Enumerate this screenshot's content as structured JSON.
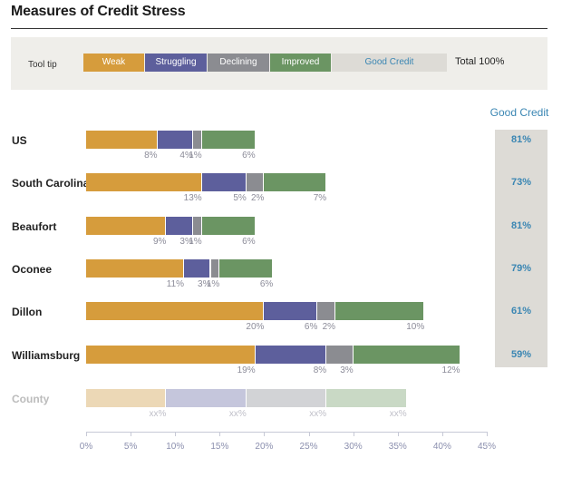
{
  "title": "Measures of Credit Stress",
  "legend": {
    "tooltip_label": "Tool tip",
    "items": [
      {
        "label": "Weak",
        "color": "#d69c3c"
      },
      {
        "label": "Struggling",
        "color": "#5d5f9c"
      },
      {
        "label": "Declining",
        "color": "#8b8c91"
      },
      {
        "label": "Improved",
        "color": "#6b9563"
      },
      {
        "label": "Good Credit",
        "color": "#dddbd6"
      }
    ],
    "total_label": "Total 100%"
  },
  "chart_data": {
    "type": "bar",
    "orientation": "horizontal",
    "stacked": true,
    "title": "Measures of Credit Stress",
    "series_names": [
      "Weak",
      "Struggling",
      "Declining",
      "Improved"
    ],
    "series_colors": [
      "#d69c3c",
      "#5d5f9c",
      "#8b8c91",
      "#6b9563"
    ],
    "good_credit_header": "Good Credit",
    "rows": [
      {
        "label": "US",
        "values": [
          8,
          4,
          1,
          6
        ],
        "labels": [
          "8%",
          "4%",
          "1%",
          "6%"
        ],
        "good_credit": "81%"
      },
      {
        "label": "South Carolina",
        "values": [
          13,
          5,
          2,
          7
        ],
        "labels": [
          "13%",
          "5%",
          "2%",
          "7%"
        ],
        "good_credit": "73%"
      },
      {
        "label": "Beaufort",
        "values": [
          9,
          3,
          1,
          6
        ],
        "labels": [
          "9%",
          "3%",
          "1%",
          "6%"
        ],
        "good_credit": "81%"
      },
      {
        "label": "Oconee",
        "values": [
          11,
          3,
          1,
          6
        ],
        "labels": [
          "11%",
          "3%",
          "1%",
          "6%"
        ],
        "good_credit": "79%"
      },
      {
        "label": "Dillon",
        "values": [
          20,
          6,
          2,
          10
        ],
        "labels": [
          "20%",
          "6%",
          "2%",
          "10%"
        ],
        "good_credit": "61%"
      },
      {
        "label": "Williamsburg",
        "values": [
          19,
          8,
          3,
          12
        ],
        "labels": [
          "19%",
          "8%",
          "3%",
          "12%"
        ],
        "good_credit": "59%"
      },
      {
        "label": "County",
        "values": [
          9,
          9,
          9,
          9
        ],
        "labels": [
          "xx%",
          "xx%",
          "xx%",
          "xx%"
        ],
        "good_credit": null,
        "placeholder": true
      }
    ],
    "x_ticks": [
      "0%",
      "5%",
      "10%",
      "15%",
      "20%",
      "25%",
      "30%",
      "35%",
      "40%",
      "45%"
    ],
    "xlim": [
      0,
      45
    ]
  }
}
